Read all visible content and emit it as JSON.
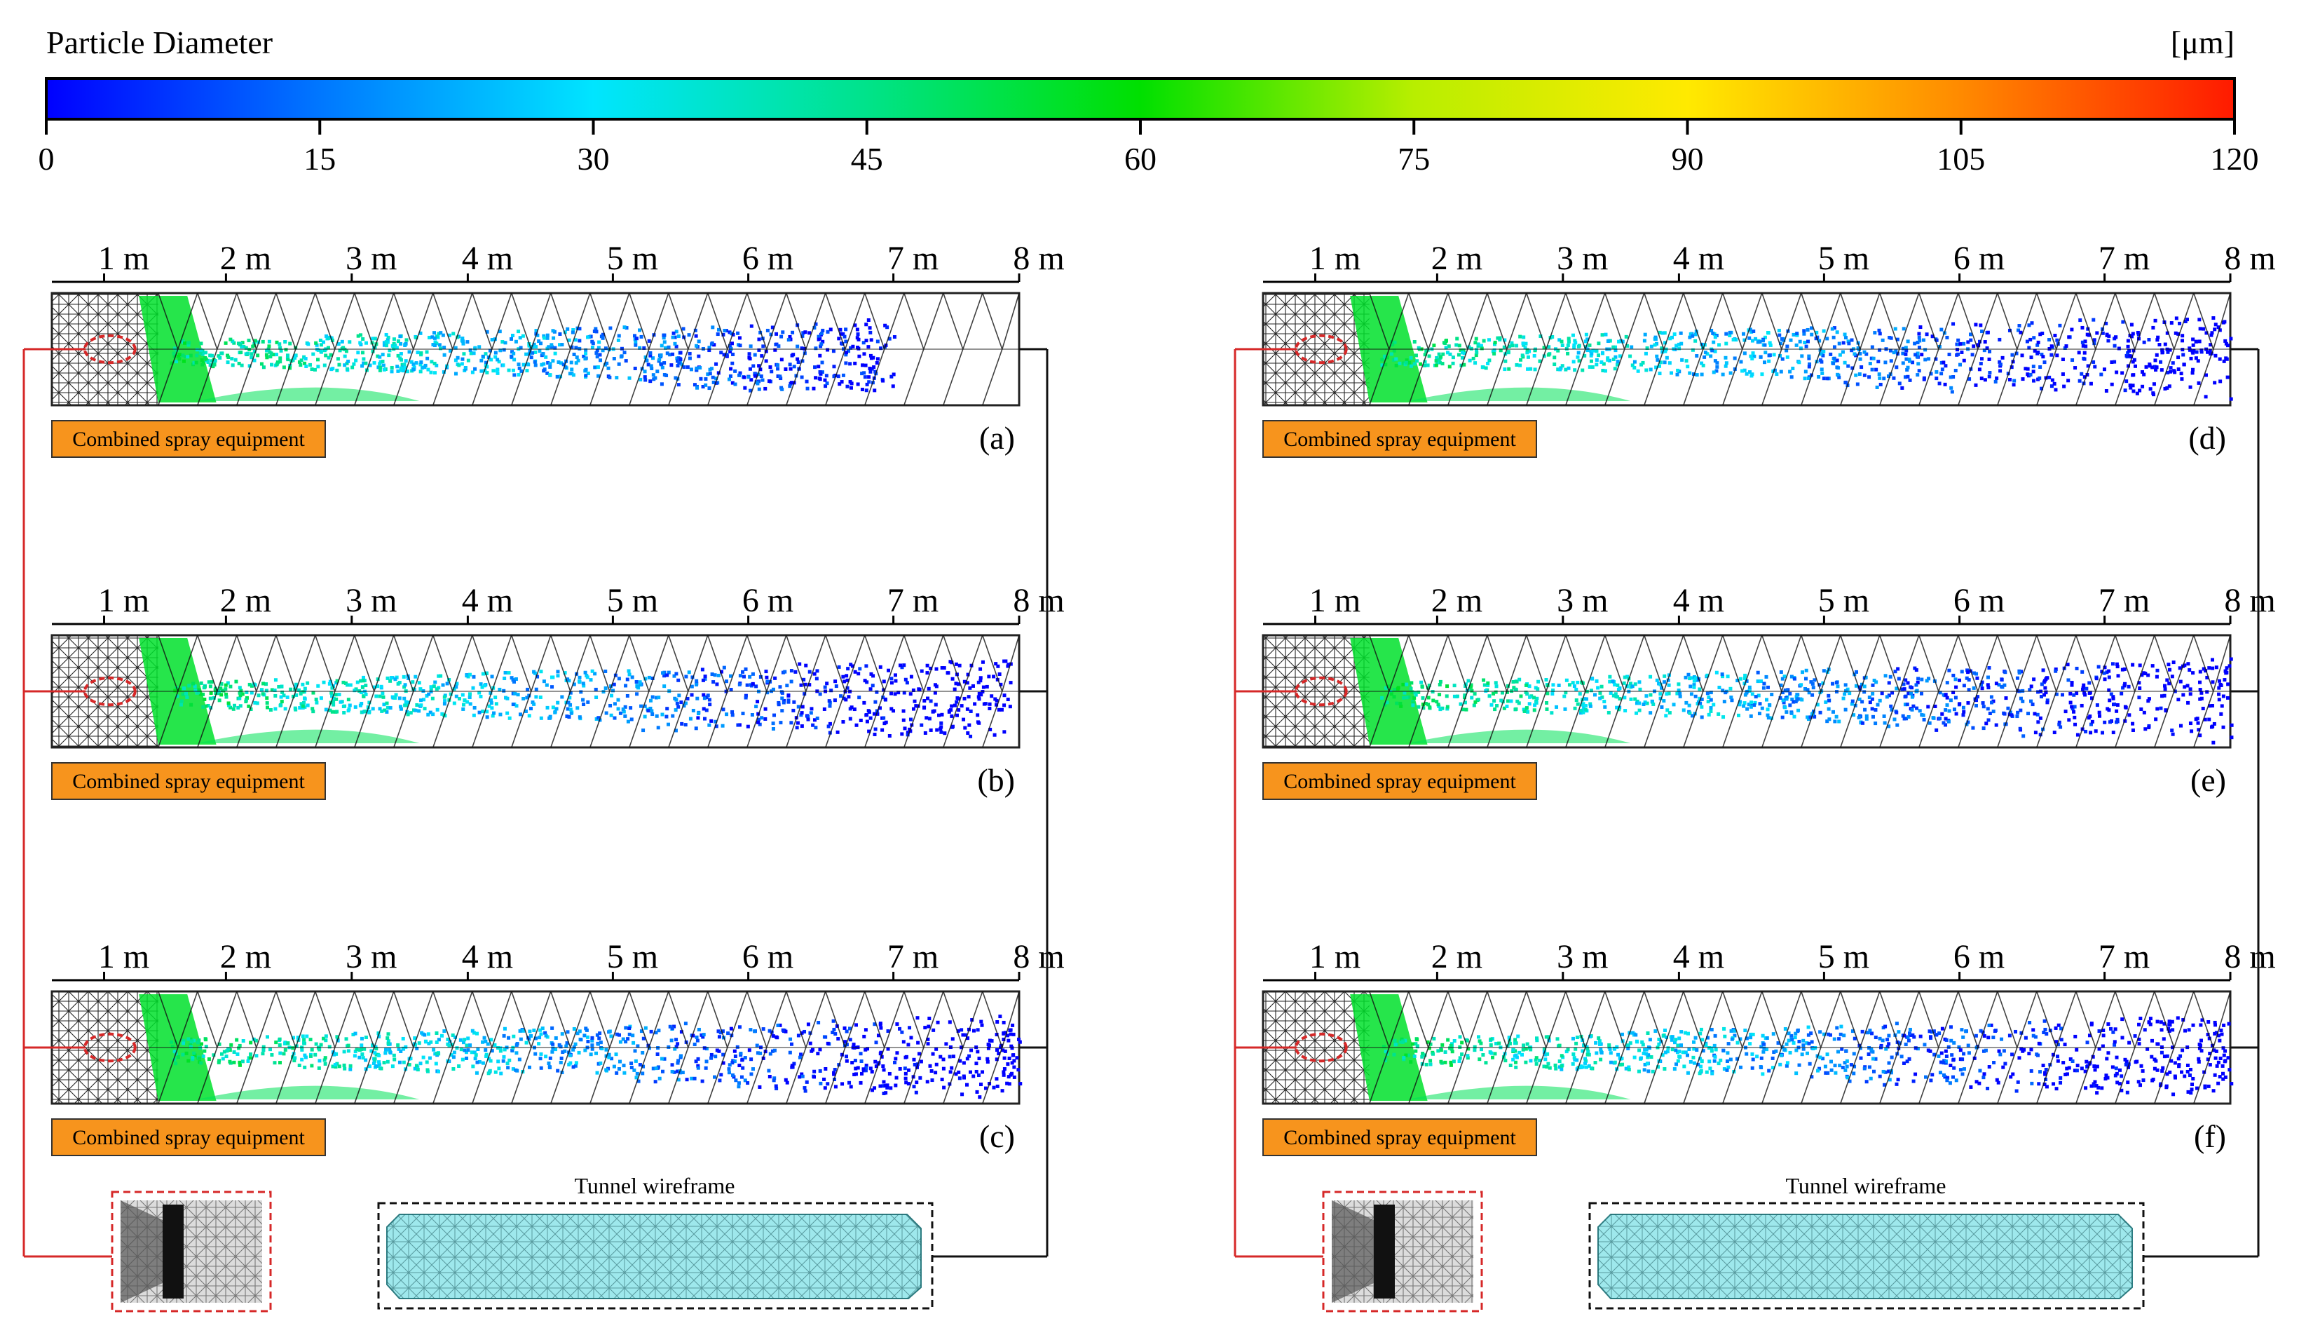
{
  "colorbar": {
    "title": "Particle Diameter",
    "unit": "[μm]",
    "min": 0,
    "max": 120,
    "ticks": [
      "0",
      "15",
      "30",
      "45",
      "60",
      "75",
      "90",
      "105",
      "120"
    ],
    "stops": [
      "#0000ff",
      "#0077ff",
      "#00e5ff",
      "#00e38a",
      "#00e000",
      "#b8ee00",
      "#ffea00",
      "#ff8a00",
      "#ff1a00"
    ]
  },
  "distance_ticks": [
    "1 m",
    "2 m",
    "3 m",
    "4 m",
    "5 m",
    "6 m",
    "7 m",
    "8 m"
  ],
  "equipment_label": "Combined spray equipment",
  "wireframe_label": "Tunnel wireframe",
  "panels": [
    {
      "id": "a",
      "label": "(a)",
      "reach": 0.87
    },
    {
      "id": "b",
      "label": "(b)",
      "reach": 0.99
    },
    {
      "id": "c",
      "label": "(c)",
      "reach": 1.0
    },
    {
      "id": "d",
      "label": "(d)",
      "reach": 1.0
    },
    {
      "id": "e",
      "label": "(e)",
      "reach": 1.0
    },
    {
      "id": "f",
      "label": "(f)",
      "reach": 1.0
    }
  ],
  "colors": {
    "label_box": "#f7941d",
    "wireframe_fill": "#9ee8ec",
    "connector_red": "#d62828",
    "connector_black": "#111111"
  }
}
